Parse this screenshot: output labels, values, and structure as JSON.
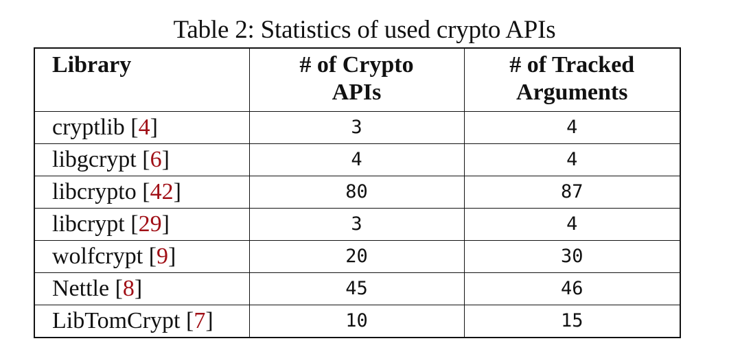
{
  "caption": "Table 2: Statistics of used crypto APIs",
  "colors": {
    "text": "#111111",
    "citation": "#a00f16",
    "border": "#111111"
  },
  "table": {
    "headers": [
      {
        "line1": "Library",
        "line2": ""
      },
      {
        "line1": "# of Crypto",
        "line2": "APIs"
      },
      {
        "line1": "# of Tracked",
        "line2": "Arguments"
      }
    ],
    "rows": [
      {
        "library": "cryptlib",
        "ref": "4",
        "apis": "3",
        "args": "4"
      },
      {
        "library": "libgcrypt",
        "ref": "6",
        "apis": "4",
        "args": "4"
      },
      {
        "library": "libcrypto",
        "ref": "42",
        "apis": "80",
        "args": "87"
      },
      {
        "library": "libcrypt",
        "ref": "29",
        "apis": "3",
        "args": "4"
      },
      {
        "library": "wolfcrypt",
        "ref": "9",
        "apis": "20",
        "args": "30"
      },
      {
        "library": "Nettle",
        "ref": "8",
        "apis": "45",
        "args": "46"
      },
      {
        "library": "LibTomCrypt",
        "ref": "7",
        "apis": "10",
        "args": "15"
      }
    ]
  }
}
